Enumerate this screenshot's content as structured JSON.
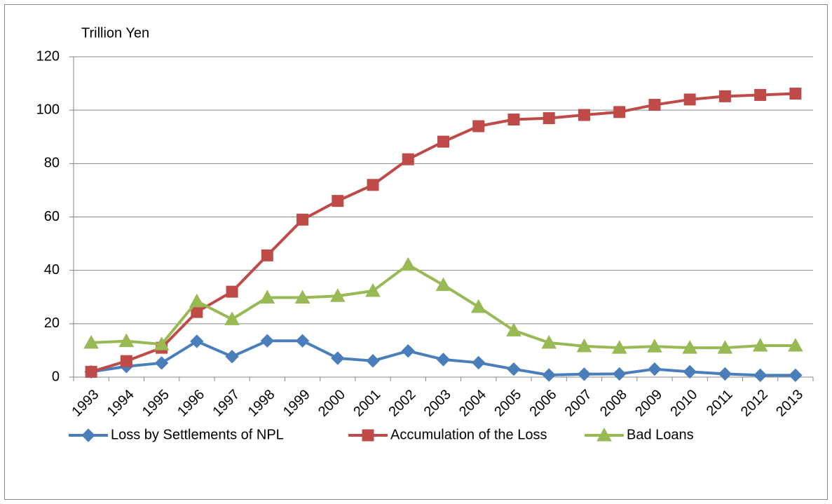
{
  "chart_data": {
    "type": "line",
    "y_label": "Trillion Yen",
    "categories": [
      "1993",
      "1994",
      "1995",
      "1996",
      "1997",
      "1998",
      "1999",
      "2000",
      "2001",
      "2002",
      "2003",
      "2004",
      "2005",
      "2006",
      "2007",
      "2008",
      "2009",
      "2010",
      "2011",
      "2012",
      "2013"
    ],
    "series": [
      {
        "name": "Loss by Settlements of NPL",
        "color": "#4a7ebb",
        "marker": "diamond",
        "values": [
          2,
          4,
          5.3,
          13.4,
          7.7,
          13.6,
          13.6,
          7.1,
          6.1,
          9.8,
          6.6,
          5.4,
          3,
          0.8,
          1.1,
          1.2,
          3,
          2,
          1.2,
          0.7,
          0.7
        ]
      },
      {
        "name": "Accumulation of the Loss",
        "color": "#be4b48",
        "marker": "square",
        "values": [
          2,
          6,
          11,
          24.4,
          32,
          45.6,
          59,
          66,
          72,
          81.6,
          88.2,
          94,
          96.5,
          97,
          98.2,
          99.3,
          102,
          104,
          105.2,
          105.7,
          106.2
        ]
      },
      {
        "name": "Bad Loans",
        "color": "#98b954",
        "marker": "triangle",
        "values": [
          12.9,
          13.5,
          12.3,
          28.4,
          21.7,
          29.8,
          29.8,
          30.4,
          32.3,
          42.1,
          34.5,
          26.3,
          17.5,
          12.9,
          11.6,
          11,
          11.5,
          11,
          11,
          11.8,
          11.8
        ]
      }
    ],
    "ylim": [
      0,
      120
    ],
    "yticks": [
      0,
      20,
      40,
      60,
      80,
      100,
      120
    ],
    "grid": true,
    "legend": "bottom"
  }
}
